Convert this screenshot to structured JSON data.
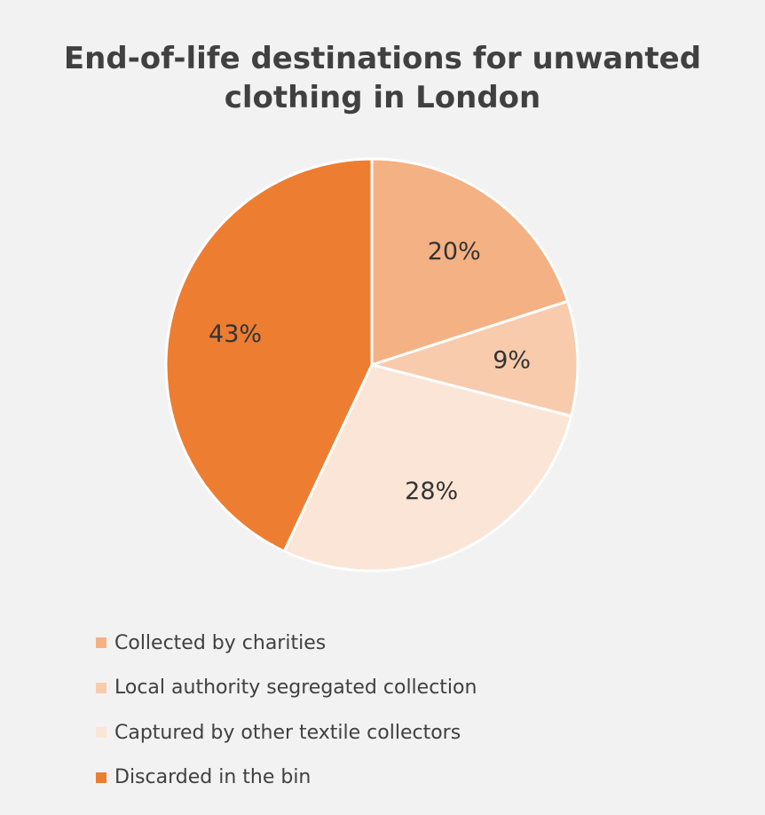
{
  "chart_data": {
    "type": "pie",
    "title": "End-of-life destinations for unwanted clothing in London",
    "slices": [
      {
        "label": "Collected by charities",
        "value": 20,
        "display": "20%",
        "color": "#f4b183"
      },
      {
        "label": "Local authority segregated collection",
        "value": 9,
        "display": "9%",
        "color": "#f8cbad"
      },
      {
        "label": "Captured by other textile collectors",
        "value": 28,
        "display": "28%",
        "color": "#fbe5d6"
      },
      {
        "label": "Discarded in the bin",
        "value": 43,
        "display": "43%",
        "color": "#ed7d31"
      }
    ],
    "legend_position": "bottom-left",
    "slice_border_color": "#ffffff",
    "background_color": "#f2f2f2"
  }
}
